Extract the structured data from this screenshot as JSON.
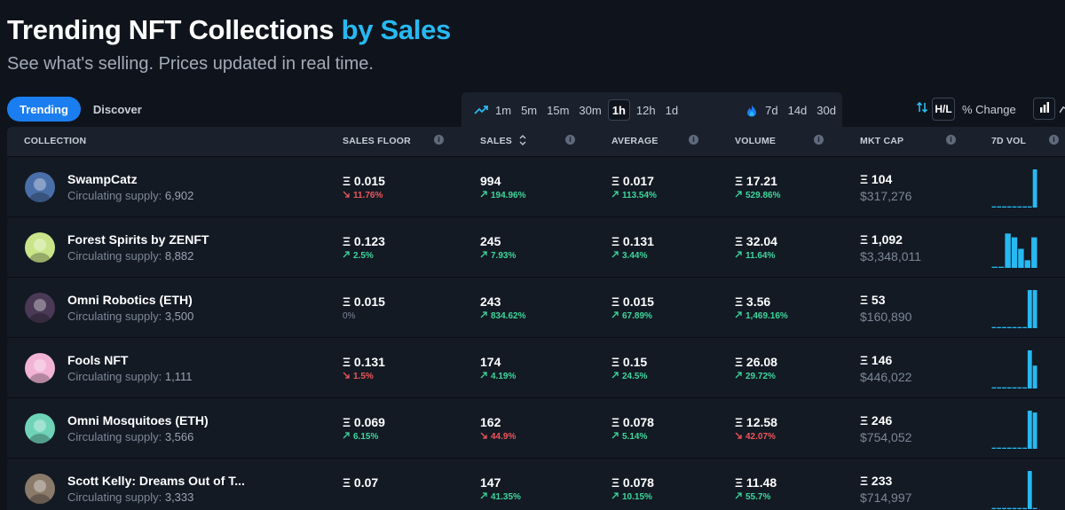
{
  "header": {
    "title": "Trending NFT Collections",
    "title_accent": "by Sales",
    "subtitle": "See what's selling. Prices updated in real time."
  },
  "tabs": [
    {
      "label": "Trending",
      "active": true
    },
    {
      "label": "Discover",
      "active": false
    }
  ],
  "time_filters": {
    "primary": [
      "1m",
      "5m",
      "15m",
      "30m",
      "1h",
      "12h",
      "1d"
    ],
    "active": "1h",
    "secondary": [
      "7d",
      "14d",
      "30d"
    ]
  },
  "toggle": {
    "hl_label": "H/L",
    "pct_label": "% Change"
  },
  "columns": {
    "collection": "COLLECTION",
    "sales_floor": "SALES FLOOR",
    "sales": "SALES",
    "average": "AVERAGE",
    "volume": "VOLUME",
    "mkt_cap": "MKT CAP",
    "vol7d": "7D VOL"
  },
  "eth_symbol": "Ξ",
  "supply_label": "Circulating supply:",
  "rows": [
    {
      "name": "SwampCatz",
      "supply": "6,902",
      "avatar": "#4a6fa8",
      "floor": "0.015",
      "floor_chg": "11.76%",
      "floor_dir": "down",
      "sales": "994",
      "sales_chg": "194.96%",
      "sales_dir": "up",
      "avg": "0.017",
      "avg_chg": "113.54%",
      "avg_dir": "up",
      "vol": "17.21",
      "vol_chg": "529.86%",
      "vol_dir": "up",
      "mcap_eth": "104",
      "mcap_usd": "$317,276",
      "spark": [
        0.03,
        0.03,
        0.03,
        0.03,
        0.03,
        0.03,
        0.03,
        0.03,
        1.0
      ]
    },
    {
      "name": "Forest Spirits by ZENFT",
      "supply": "8,882",
      "avatar": "#c8e58a",
      "floor": "0.123",
      "floor_chg": "2.5%",
      "floor_dir": "up",
      "sales": "245",
      "sales_chg": "7.93%",
      "sales_dir": "up",
      "avg": "0.131",
      "avg_chg": "3.44%",
      "avg_dir": "up",
      "vol": "32.04",
      "vol_chg": "11.64%",
      "vol_dir": "up",
      "mcap_eth": "1,092",
      "mcap_usd": "$3,348,011",
      "spark": [
        0.03,
        0.03,
        0.9,
        0.8,
        0.5,
        0.2,
        0.8
      ]
    },
    {
      "name": "Omni Robotics (ETH)",
      "supply": "3,500",
      "avatar": "#4a3a55",
      "floor": "0.015",
      "floor_chg": "0%",
      "floor_dir": "flat",
      "sales": "243",
      "sales_chg": "834.62%",
      "sales_dir": "up",
      "avg": "0.015",
      "avg_chg": "67.89%",
      "avg_dir": "up",
      "vol": "3.56",
      "vol_chg": "1,469.16%",
      "vol_dir": "up",
      "mcap_eth": "53",
      "mcap_usd": "$160,890",
      "spark": [
        0.03,
        0.03,
        0.03,
        0.03,
        0.03,
        0.03,
        0.03,
        1.0,
        1.0
      ]
    },
    {
      "name": "Fools NFT",
      "supply": "1,111",
      "avatar": "#f2b3d6",
      "floor": "0.131",
      "floor_chg": "1.5%",
      "floor_dir": "down",
      "sales": "174",
      "sales_chg": "4.19%",
      "sales_dir": "up",
      "avg": "0.15",
      "avg_chg": "24.5%",
      "avg_dir": "up",
      "vol": "26.08",
      "vol_chg": "29.72%",
      "vol_dir": "up",
      "mcap_eth": "146",
      "mcap_usd": "$446,022",
      "spark": [
        0.03,
        0.03,
        0.03,
        0.03,
        0.03,
        0.03,
        0.03,
        1.0,
        0.6
      ]
    },
    {
      "name": "Omni Mosquitoes (ETH)",
      "supply": "3,566",
      "avatar": "#6fd3b8",
      "floor": "0.069",
      "floor_chg": "6.15%",
      "floor_dir": "up",
      "sales": "162",
      "sales_chg": "44.9%",
      "sales_dir": "down",
      "avg": "0.078",
      "avg_chg": "5.14%",
      "avg_dir": "up",
      "vol": "12.58",
      "vol_chg": "42.07%",
      "vol_dir": "down",
      "mcap_eth": "246",
      "mcap_usd": "$754,052",
      "spark": [
        0.03,
        0.03,
        0.03,
        0.03,
        0.03,
        0.03,
        0.03,
        1.0,
        0.95
      ]
    },
    {
      "name": "Scott Kelly: Dreams Out of T...",
      "supply": "3,333",
      "avatar": "#8a7a6a",
      "floor": "0.07",
      "floor_chg": "",
      "floor_dir": "flat",
      "sales": "147",
      "sales_chg": "41.35%",
      "sales_dir": "up",
      "avg": "0.078",
      "avg_chg": "10.15%",
      "avg_dir": "up",
      "vol": "11.48",
      "vol_chg": "55.7%",
      "vol_dir": "up",
      "mcap_eth": "233",
      "mcap_usd": "$714,997",
      "spark": [
        0.03,
        0.03,
        0.03,
        0.03,
        0.03,
        0.03,
        0.03,
        1.0,
        0.03
      ]
    }
  ]
}
